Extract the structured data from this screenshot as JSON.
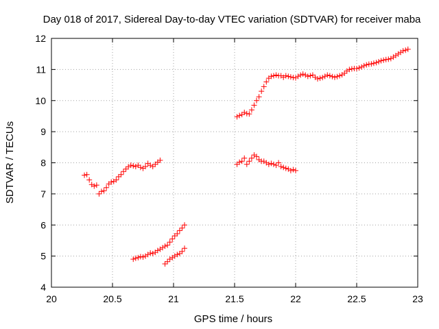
{
  "chart_data": {
    "type": "scatter",
    "title": "Day 018 of 2017, Sidereal Day-to-day VTEC variation (SDTVAR) for receiver maba",
    "xlabel": "GPS time / hours",
    "ylabel": "SDTVAR / TECUs",
    "xlim": [
      20,
      23
    ],
    "ylim": [
      4,
      12
    ],
    "xticks": [
      "20",
      "20.5",
      "21",
      "21.5",
      "22",
      "22.5",
      "23"
    ],
    "yticks": [
      "4",
      "5",
      "6",
      "7",
      "8",
      "9",
      "10",
      "11",
      "12"
    ],
    "grid": true,
    "marker": "+",
    "color": "#ff0000",
    "series": [
      {
        "x": [
          20.27,
          20.29,
          20.31,
          20.33,
          20.35,
          20.37,
          20.39,
          20.41,
          20.43,
          20.45,
          20.47,
          20.49,
          20.51,
          20.53,
          20.55,
          20.57,
          20.59,
          20.61,
          20.63,
          20.65,
          20.67,
          20.69,
          20.71,
          20.73,
          20.75,
          20.77,
          20.79,
          20.81,
          20.83,
          20.85,
          20.87,
          20.89
        ],
        "y": [
          7.6,
          7.62,
          7.45,
          7.3,
          7.25,
          7.28,
          7.0,
          7.08,
          7.1,
          7.2,
          7.32,
          7.38,
          7.4,
          7.45,
          7.55,
          7.62,
          7.72,
          7.8,
          7.87,
          7.92,
          7.9,
          7.88,
          7.92,
          7.85,
          7.82,
          7.88,
          7.98,
          7.92,
          7.88,
          7.95,
          8.02,
          8.08
        ]
      },
      {
        "x": [
          20.67,
          20.69,
          20.71,
          20.73,
          20.75,
          20.77,
          20.79,
          20.81,
          20.83,
          20.85,
          20.87,
          20.89,
          20.91,
          20.93,
          20.95,
          20.97,
          20.99,
          21.01,
          21.03,
          21.05,
          21.07,
          21.09
        ],
        "y": [
          4.9,
          4.93,
          4.95,
          4.98,
          4.97,
          5.0,
          5.05,
          5.1,
          5.08,
          5.12,
          5.18,
          5.22,
          5.27,
          5.32,
          5.35,
          5.45,
          5.55,
          5.65,
          5.72,
          5.82,
          5.9,
          6.0
        ]
      },
      {
        "x": [
          20.93,
          20.95,
          20.97,
          20.99,
          21.01,
          21.03,
          21.05,
          21.07,
          21.09
        ],
        "y": [
          4.75,
          4.82,
          4.9,
          4.95,
          5.0,
          5.05,
          5.08,
          5.15,
          5.25
        ]
      },
      {
        "x": [
          21.52,
          21.54,
          21.56,
          21.58,
          21.6,
          21.62,
          21.64,
          21.66,
          21.68,
          21.7,
          21.72,
          21.74,
          21.76,
          21.78,
          21.8,
          21.82,
          21.84,
          21.86,
          21.88,
          21.9,
          21.92,
          21.94,
          21.96,
          21.98,
          22.0,
          22.02,
          22.04,
          22.06,
          22.08,
          22.1,
          22.12,
          22.14,
          22.16,
          22.18,
          22.2,
          22.22,
          22.24,
          22.26,
          22.28,
          22.3,
          22.32,
          22.34,
          22.36,
          22.38,
          22.4,
          22.42,
          22.44,
          22.46,
          22.48,
          22.5,
          22.52,
          22.54,
          22.56,
          22.58,
          22.6,
          22.62,
          22.64,
          22.66,
          22.68,
          22.7,
          22.72,
          22.74,
          22.76,
          22.78,
          22.8,
          22.82,
          22.84,
          22.86,
          22.88,
          22.9,
          22.92
        ],
        "y": [
          9.48,
          9.52,
          9.55,
          9.62,
          9.58,
          9.57,
          9.7,
          9.85,
          10.0,
          10.12,
          10.3,
          10.45,
          10.6,
          10.72,
          10.78,
          10.8,
          10.82,
          10.8,
          10.8,
          10.75,
          10.8,
          10.78,
          10.76,
          10.74,
          10.73,
          10.78,
          10.82,
          10.85,
          10.82,
          10.78,
          10.8,
          10.82,
          10.75,
          10.7,
          10.72,
          10.74,
          10.78,
          10.82,
          10.8,
          10.77,
          10.75,
          10.77,
          10.8,
          10.83,
          10.88,
          10.95,
          11.0,
          11.02,
          11.03,
          11.03,
          11.05,
          11.08,
          11.12,
          11.15,
          11.17,
          11.18,
          11.2,
          11.22,
          11.25,
          11.28,
          11.3,
          11.32,
          11.33,
          11.35,
          11.4,
          11.45,
          11.5,
          11.55,
          11.6,
          11.62,
          11.65
        ]
      },
      {
        "x": [
          21.52,
          21.54,
          21.56,
          21.58,
          21.6,
          21.62,
          21.64,
          21.66,
          21.68,
          21.7,
          21.72,
          21.74,
          21.76,
          21.78,
          21.8,
          21.82,
          21.84,
          21.86,
          21.88,
          21.9,
          21.92,
          21.94,
          21.96,
          21.98,
          22.0
        ],
        "y": [
          7.95,
          8.02,
          8.05,
          8.15,
          7.95,
          8.05,
          8.15,
          8.25,
          8.2,
          8.1,
          8.05,
          8.05,
          8.0,
          7.95,
          7.98,
          7.95,
          7.92,
          8.0,
          7.88,
          7.85,
          7.82,
          7.8,
          7.75,
          7.78,
          7.75
        ]
      }
    ]
  }
}
